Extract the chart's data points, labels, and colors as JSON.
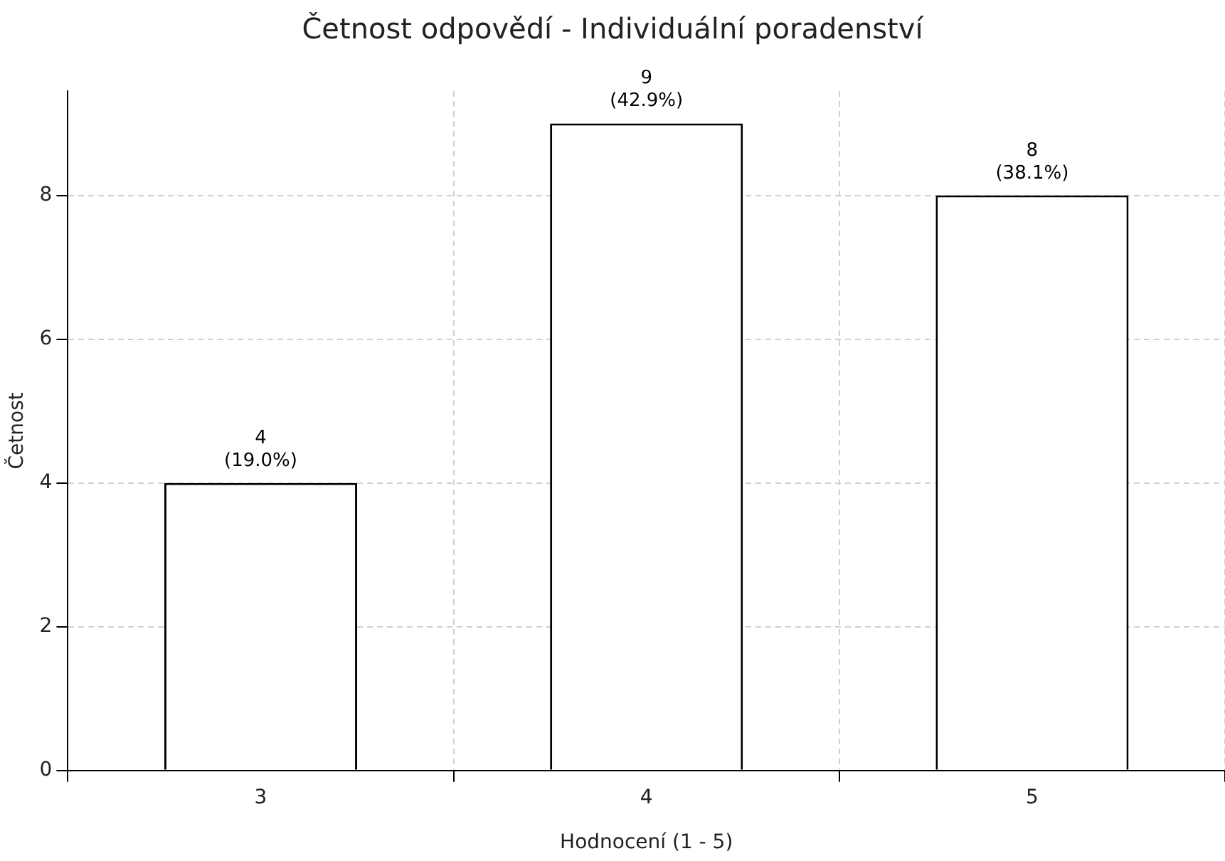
{
  "chart_data": {
    "type": "bar",
    "title": "Četnost odpovědí - Individuální poradenství",
    "xlabel": "Hodnocení (1 - 5)",
    "ylabel": "Četnost",
    "categories": [
      "3",
      "4",
      "5"
    ],
    "values": [
      4,
      9,
      8
    ],
    "color": "#ffffff",
    "value_labels": [
      "4\n(19.0%)",
      "9\n(42.9%)",
      "8\n(38.1%)"
    ],
    "ylim": [
      0,
      9.45
    ],
    "yticks": [
      0,
      2,
      4,
      6,
      8
    ],
    "grid": true,
    "legend": false
  }
}
